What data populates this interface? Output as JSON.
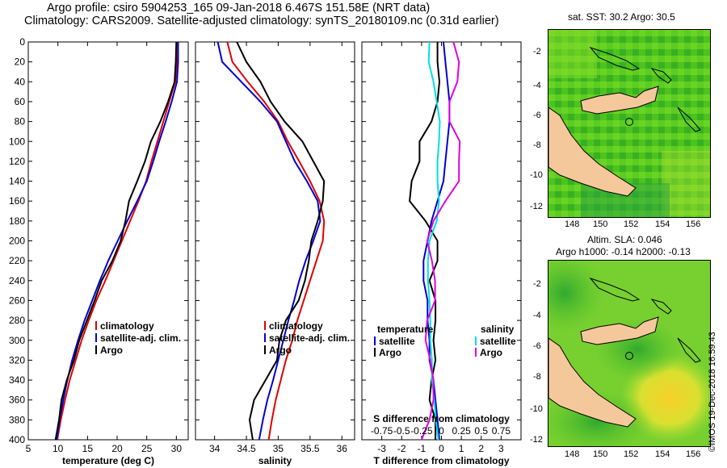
{
  "header": {
    "title_line1": "Argo profile: csiro 5904253_165 09-Jan-2018 6.467S 151.58E (NRT data)",
    "title_line2": "Climatology: CARS2009. Satellite-adjusted climatology: synTS_20180109.nc (0.31d earlier)"
  },
  "colors": {
    "climatology": "#e00000",
    "satellite": "#0000d0",
    "argo": "#000000",
    "sal_satellite": "#00e0e0",
    "sal_argo": "#e000e0",
    "land": "#f5c89b"
  },
  "chart_data": [
    {
      "id": "temperature",
      "type": "line",
      "xlabel": "temperature (deg C)",
      "xlim": [
        5,
        32
      ],
      "ylim": [
        0,
        400
      ],
      "xticks": [
        5,
        10,
        15,
        20,
        25,
        30
      ],
      "yticks": [
        0,
        20,
        40,
        60,
        80,
        100,
        120,
        140,
        160,
        180,
        200,
        220,
        240,
        260,
        280,
        300,
        320,
        340,
        360,
        380,
        400
      ],
      "legend": [
        "climatology",
        "satellite-adj. clim.",
        "Argo"
      ],
      "series": [
        {
          "name": "climatology",
          "color": "#e00000",
          "points": [
            [
              30.2,
              0
            ],
            [
              30.1,
              20
            ],
            [
              29.8,
              40
            ],
            [
              28.8,
              60
            ],
            [
              27.8,
              80
            ],
            [
              26.8,
              100
            ],
            [
              25.8,
              120
            ],
            [
              24.9,
              140
            ],
            [
              23.6,
              160
            ],
            [
              22.2,
              180
            ],
            [
              20.8,
              200
            ],
            [
              19.4,
              220
            ],
            [
              18.0,
              240
            ],
            [
              16.5,
              260
            ],
            [
              15.2,
              280
            ],
            [
              14.0,
              300
            ],
            [
              13.0,
              320
            ],
            [
              12.0,
              340
            ],
            [
              11.2,
              360
            ],
            [
              10.5,
              380
            ],
            [
              9.9,
              400
            ]
          ]
        },
        {
          "name": "satellite-adj. clim.",
          "color": "#0000d0",
          "points": [
            [
              30.3,
              0
            ],
            [
              30.3,
              20
            ],
            [
              30.1,
              40
            ],
            [
              29.2,
              60
            ],
            [
              28.2,
              80
            ],
            [
              27.1,
              100
            ],
            [
              26.1,
              120
            ],
            [
              25.0,
              140
            ],
            [
              23.4,
              160
            ],
            [
              21.7,
              180
            ],
            [
              20.1,
              200
            ],
            [
              18.5,
              220
            ],
            [
              17.1,
              240
            ],
            [
              15.8,
              260
            ],
            [
              14.5,
              280
            ],
            [
              13.4,
              300
            ],
            [
              12.4,
              320
            ],
            [
              11.6,
              340
            ],
            [
              10.9,
              360
            ],
            [
              10.3,
              380
            ],
            [
              9.8,
              400
            ]
          ]
        },
        {
          "name": "Argo",
          "color": "#000000",
          "points": [
            [
              30.0,
              0
            ],
            [
              29.9,
              20
            ],
            [
              29.7,
              40
            ],
            [
              28.6,
              60
            ],
            [
              27.3,
              80
            ],
            [
              25.7,
              100
            ],
            [
              24.7,
              120
            ],
            [
              23.4,
              140
            ],
            [
              22.0,
              160
            ],
            [
              21.4,
              180
            ],
            [
              20.6,
              200
            ],
            [
              19.2,
              220
            ],
            [
              17.4,
              240
            ],
            [
              16.2,
              260
            ],
            [
              14.9,
              280
            ],
            [
              13.6,
              300
            ],
            [
              12.7,
              320
            ],
            [
              11.5,
              340
            ],
            [
              10.6,
              360
            ],
            [
              10.2,
              380
            ],
            [
              9.6,
              400
            ]
          ]
        }
      ]
    },
    {
      "id": "salinity",
      "type": "line",
      "xlabel": "salinity",
      "xlim": [
        33.7,
        36.2
      ],
      "ylim": [
        0,
        400
      ],
      "xticks": [
        34,
        34.5,
        35,
        35.5,
        36
      ],
      "legend": [
        "climatology",
        "satellite-adj. clim.",
        "Argo"
      ],
      "series": [
        {
          "name": "climatology",
          "color": "#e00000",
          "points": [
            [
              34.2,
              0
            ],
            [
              34.28,
              20
            ],
            [
              34.52,
              40
            ],
            [
              34.78,
              60
            ],
            [
              35.0,
              80
            ],
            [
              35.15,
              100
            ],
            [
              35.33,
              120
            ],
            [
              35.5,
              140
            ],
            [
              35.65,
              160
            ],
            [
              35.72,
              180
            ],
            [
              35.7,
              200
            ],
            [
              35.6,
              220
            ],
            [
              35.5,
              240
            ],
            [
              35.4,
              260
            ],
            [
              35.3,
              280
            ],
            [
              35.22,
              300
            ],
            [
              35.12,
              320
            ],
            [
              35.04,
              340
            ],
            [
              34.96,
              360
            ],
            [
              34.9,
              380
            ],
            [
              34.85,
              400
            ]
          ]
        },
        {
          "name": "satellite-adj. clim.",
          "color": "#0000d0",
          "points": [
            [
              34.05,
              0
            ],
            [
              34.12,
              20
            ],
            [
              34.42,
              40
            ],
            [
              34.72,
              60
            ],
            [
              34.98,
              80
            ],
            [
              35.12,
              100
            ],
            [
              35.26,
              120
            ],
            [
              35.45,
              140
            ],
            [
              35.62,
              160
            ],
            [
              35.66,
              180
            ],
            [
              35.55,
              200
            ],
            [
              35.43,
              220
            ],
            [
              35.33,
              240
            ],
            [
              35.25,
              260
            ],
            [
              35.16,
              280
            ],
            [
              35.08,
              300
            ],
            [
              35.0,
              320
            ],
            [
              34.92,
              340
            ],
            [
              34.83,
              360
            ],
            [
              34.76,
              380
            ],
            [
              34.7,
              400
            ]
          ]
        },
        {
          "name": "Argo",
          "color": "#000000",
          "points": [
            [
              34.35,
              0
            ],
            [
              34.5,
              20
            ],
            [
              34.72,
              40
            ],
            [
              34.88,
              60
            ],
            [
              35.1,
              80
            ],
            [
              35.38,
              100
            ],
            [
              35.55,
              120
            ],
            [
              35.72,
              140
            ],
            [
              35.7,
              160
            ],
            [
              35.62,
              180
            ],
            [
              35.52,
              200
            ],
            [
              35.48,
              220
            ],
            [
              35.42,
              240
            ],
            [
              35.32,
              260
            ],
            [
              35.12,
              280
            ],
            [
              35.02,
              300
            ],
            [
              34.98,
              320
            ],
            [
              34.8,
              340
            ],
            [
              34.62,
              360
            ],
            [
              34.55,
              380
            ],
            [
              34.6,
              400
            ]
          ]
        }
      ]
    },
    {
      "id": "difference",
      "type": "line",
      "xlabel": "T difference from climatology",
      "top_xlabel": "S difference from climatology",
      "xlim": [
        -4,
        4
      ],
      "ylim": [
        0,
        400
      ],
      "xticks": [
        -3,
        -2,
        -1,
        0,
        1,
        2,
        3
      ],
      "top_ticks": [
        "-0.75",
        "-0.5",
        "-0.25",
        "0",
        "0.25",
        "0.5",
        "0.75"
      ],
      "legend_left": {
        "title": "temperature",
        "items": [
          "satellite",
          "Argo"
        ]
      },
      "legend_right": {
        "title": "salinity",
        "items": [
          "satellite",
          "Argo"
        ]
      },
      "series": [
        {
          "name": "temperature satellite",
          "color": "#0000d0",
          "points": [
            [
              0.1,
              0
            ],
            [
              0.2,
              20
            ],
            [
              0.3,
              40
            ],
            [
              0.4,
              60
            ],
            [
              0.4,
              80
            ],
            [
              0.3,
              100
            ],
            [
              0.2,
              120
            ],
            [
              0.1,
              140
            ],
            [
              -0.2,
              160
            ],
            [
              -0.5,
              180
            ],
            [
              -0.7,
              200
            ],
            [
              -0.9,
              220
            ],
            [
              -0.9,
              240
            ],
            [
              -0.7,
              260
            ],
            [
              -0.7,
              280
            ],
            [
              -0.6,
              300
            ],
            [
              -0.6,
              320
            ],
            [
              -0.4,
              340
            ],
            [
              -0.3,
              360
            ],
            [
              -0.2,
              380
            ],
            [
              -0.1,
              400
            ]
          ]
        },
        {
          "name": "temperature Argo",
          "color": "#000000",
          "points": [
            [
              -0.2,
              0
            ],
            [
              -0.2,
              20
            ],
            [
              -0.1,
              40
            ],
            [
              -0.2,
              60
            ],
            [
              -0.5,
              80
            ],
            [
              -1.1,
              100
            ],
            [
              -1.1,
              120
            ],
            [
              -1.5,
              140
            ],
            [
              -1.6,
              160
            ],
            [
              -0.8,
              180
            ],
            [
              -0.2,
              200
            ],
            [
              -0.2,
              220
            ],
            [
              -0.6,
              240
            ],
            [
              -0.3,
              260
            ],
            [
              -0.3,
              280
            ],
            [
              -0.4,
              300
            ],
            [
              -0.3,
              320
            ],
            [
              -0.5,
              340
            ],
            [
              -0.6,
              360
            ],
            [
              -0.3,
              380
            ],
            [
              -0.3,
              400
            ]
          ]
        },
        {
          "name": "salinity satellite",
          "color": "#00e0e0",
          "points": [
            [
              -0.15,
              0
            ],
            [
              -0.16,
              20
            ],
            [
              -0.1,
              40
            ],
            [
              -0.06,
              60
            ],
            [
              -0.02,
              80
            ],
            [
              -0.03,
              100
            ],
            [
              -0.05,
              120
            ],
            [
              -0.05,
              140
            ],
            [
              -0.03,
              160
            ],
            [
              -0.06,
              180
            ],
            [
              -0.15,
              200
            ],
            [
              -0.17,
              220
            ],
            [
              -0.17,
              240
            ],
            [
              -0.15,
              260
            ],
            [
              -0.14,
              280
            ],
            [
              -0.14,
              300
            ],
            [
              -0.12,
              320
            ],
            [
              -0.12,
              340
            ],
            [
              -0.09,
              360
            ],
            [
              -0.07,
              380
            ],
            [
              -0.04,
              400
            ]
          ]
        },
        {
          "name": "salinity Argo",
          "color": "#e000e0",
          "points": [
            [
              0.15,
              0
            ],
            [
              0.22,
              20
            ],
            [
              0.2,
              40
            ],
            [
              0.1,
              60
            ],
            [
              0.1,
              80
            ],
            [
              0.23,
              100
            ],
            [
              0.22,
              120
            ],
            [
              0.22,
              140
            ],
            [
              0.05,
              160
            ],
            [
              -0.1,
              180
            ],
            [
              -0.18,
              200
            ],
            [
              -0.12,
              220
            ],
            [
              -0.08,
              240
            ],
            [
              -0.08,
              260
            ],
            [
              -0.18,
              280
            ],
            [
              -0.2,
              300
            ],
            [
              -0.14,
              320
            ],
            [
              -0.1,
              340
            ],
            [
              -0.1,
              360
            ],
            [
              -0.15,
              380
            ],
            [
              -0.25,
              400
            ]
          ]
        }
      ]
    }
  ],
  "maps": [
    {
      "title": "sat. SST: 30.2 Argo: 30.5",
      "xticks": [
        "148",
        "150",
        "152",
        "154",
        "156"
      ],
      "yticks": [
        "-2",
        "-4",
        "-6",
        "-8",
        "-10",
        "-12"
      ]
    },
    {
      "title_line1": "Altim. SLA: 0.046",
      "title_line2": "Argo h1000: -0.14 h2000: -0.13",
      "xticks": [
        "148",
        "150",
        "152",
        "154",
        "156"
      ],
      "yticks": [
        "-2",
        "-4",
        "-6",
        "-8",
        "-10",
        "-12"
      ]
    }
  ],
  "footer": {
    "stamp": "©IMOS 19-Dec-2018 16:59:43"
  }
}
